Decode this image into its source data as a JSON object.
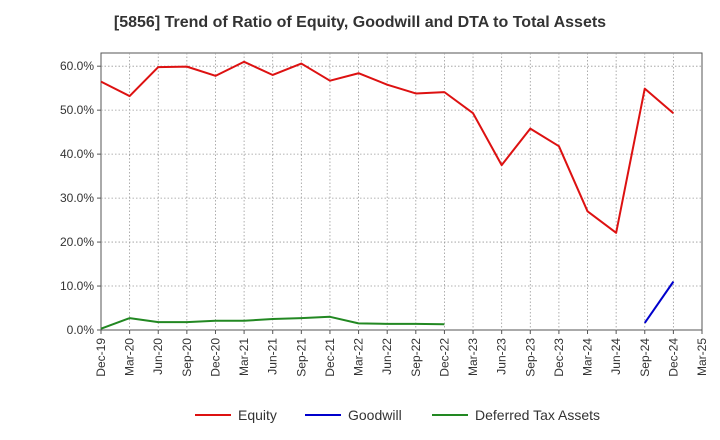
{
  "chart_data": {
    "type": "line",
    "title": "[5856]  Trend of Ratio of Equity, Goodwill and DTA to Total Assets",
    "xlabel": "",
    "ylabel": "",
    "ylim": [
      0,
      63
    ],
    "y_ticks": [
      "0.0%",
      "10.0%",
      "20.0%",
      "30.0%",
      "40.0%",
      "50.0%",
      "60.0%"
    ],
    "y_tick_values": [
      0,
      10,
      20,
      30,
      40,
      50,
      60
    ],
    "x_tick_labels": [
      "Dec-19",
      "Mar-20",
      "Jun-20",
      "Sep-20",
      "Dec-20",
      "Mar-21",
      "Jun-21",
      "Sep-21",
      "Dec-21",
      "Mar-22",
      "Jun-22",
      "Sep-22",
      "Dec-22",
      "Mar-23",
      "Jun-23",
      "Sep-23",
      "Dec-23",
      "Mar-24",
      "Jun-24",
      "Sep-24",
      "Dec-24",
      "Mar-25"
    ],
    "grid": true,
    "legend_position": "bottom",
    "x": [
      "Dec-19",
      "Mar-20",
      "Jun-20",
      "Sep-20",
      "Dec-20",
      "Mar-21",
      "Jun-21",
      "Sep-21",
      "Dec-21",
      "Mar-22",
      "Jun-22",
      "Sep-22",
      "Dec-22",
      "Mar-23",
      "Jun-23",
      "Sep-23",
      "Dec-23",
      "Mar-24",
      "Jun-24",
      "Sep-24",
      "Dec-24",
      "Mar-25"
    ],
    "series": [
      {
        "name": "Equity",
        "color": "#dd1111",
        "values": [
          56.5,
          53.2,
          59.8,
          59.9,
          57.8,
          61.0,
          58.0,
          60.6,
          56.7,
          58.4,
          55.8,
          53.8,
          54.1,
          49.3,
          37.5,
          45.8,
          41.8,
          27.0,
          22.1,
          54.9,
          49.3,
          null
        ]
      },
      {
        "name": "Goodwill",
        "color": "#0000cc",
        "values": [
          null,
          null,
          null,
          null,
          null,
          null,
          null,
          null,
          null,
          null,
          null,
          null,
          null,
          null,
          null,
          null,
          null,
          null,
          null,
          1.6,
          11.0,
          null
        ]
      },
      {
        "name": "Deferred Tax Assets",
        "color": "#228822",
        "values": [
          0.3,
          2.7,
          1.8,
          1.8,
          2.1,
          2.1,
          2.5,
          2.7,
          3.0,
          1.5,
          1.4,
          1.4,
          1.3,
          null,
          null,
          null,
          null,
          null,
          null,
          null,
          null,
          null
        ]
      }
    ]
  }
}
